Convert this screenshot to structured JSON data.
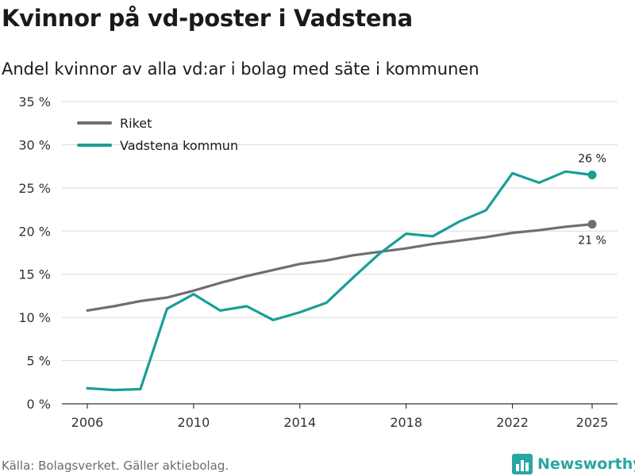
{
  "title": "Kvinnor på vd-poster i Vadstena",
  "subtitle": "Andel kvinnor av alla vd:ar i bolag med säte i kommunen",
  "source": "Källa: Bolagsverket. Gäller aktiebolag.",
  "brand": "Newsworthy",
  "colors": {
    "riket": "#6e6e73",
    "vadstena": "#1a9e96",
    "grid": "#d9d9d9",
    "brand": "#2aa6a0"
  },
  "chart_data": {
    "type": "line",
    "title": "Kvinnor på vd-poster i Vadstena",
    "subtitle": "Andel kvinnor av alla vd:ar i bolag med säte i kommunen",
    "xlabel": "",
    "ylabel": "",
    "x": [
      2006,
      2007,
      2008,
      2009,
      2010,
      2011,
      2012,
      2013,
      2014,
      2015,
      2016,
      2017,
      2018,
      2019,
      2020,
      2021,
      2022,
      2023,
      2024,
      2025
    ],
    "xticks": [
      2006,
      2010,
      2014,
      2018,
      2022,
      2025
    ],
    "xtick_labels": [
      "2006",
      "2010",
      "2014",
      "2018",
      "2022",
      "2025"
    ],
    "ylim": [
      0,
      35
    ],
    "yticks": [
      0,
      5,
      10,
      15,
      20,
      25,
      30,
      35
    ],
    "ytick_labels": [
      "0 %",
      "5 %",
      "10 %",
      "15 %",
      "20 %",
      "25 %",
      "30 %",
      "35 %"
    ],
    "grid": true,
    "legend_position": "top-left",
    "series": [
      {
        "name": "Riket",
        "color": "#6e6e73",
        "values": [
          10.8,
          11.3,
          11.9,
          12.3,
          13.1,
          14.0,
          14.8,
          15.5,
          16.2,
          16.6,
          17.2,
          17.6,
          18.0,
          18.5,
          18.9,
          19.3,
          19.8,
          20.1,
          20.5,
          20.8
        ],
        "end_label": "21 %"
      },
      {
        "name": "Vadstena kommun",
        "color": "#1a9e96",
        "values": [
          1.8,
          1.6,
          1.7,
          11.0,
          12.7,
          10.8,
          11.3,
          9.7,
          10.6,
          11.7,
          14.6,
          17.4,
          19.7,
          19.4,
          21.1,
          22.4,
          26.7,
          25.6,
          26.9,
          26.5
        ],
        "end_label": "26 %"
      }
    ]
  }
}
